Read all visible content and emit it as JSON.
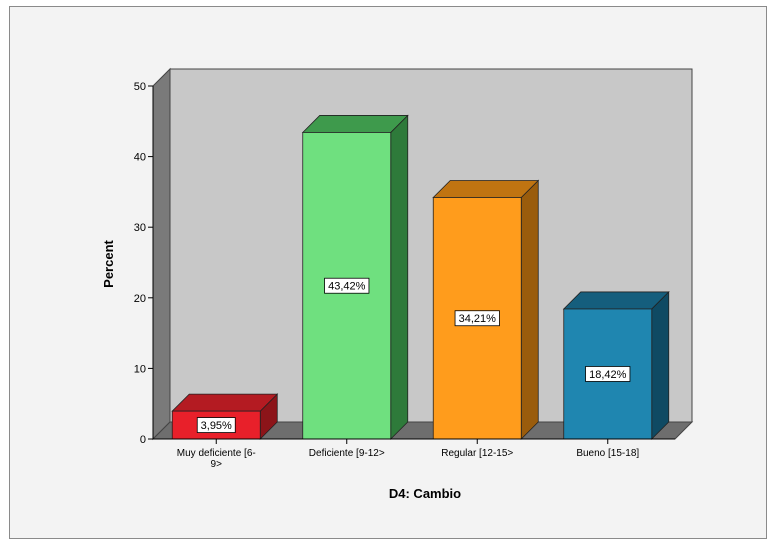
{
  "chart_data": {
    "type": "bar",
    "title": "",
    "xlabel": "D4: Cambio",
    "ylabel": "Percent",
    "ylim": [
      0,
      50
    ],
    "yticks": [
      0,
      10,
      20,
      30,
      40,
      50
    ],
    "categories": [
      "Muy deficiente [6-9>",
      "Deficiente [9-12>",
      "Regular [12-15>",
      "Bueno [15-18]"
    ],
    "category_label_lines": [
      [
        "Muy deficiente [6-",
        "9>"
      ],
      [
        "Deficiente [9-12>"
      ],
      [
        "Regular [12-15>"
      ],
      [
        "Bueno [15-18]"
      ]
    ],
    "values": [
      3.95,
      43.42,
      34.21,
      18.42
    ],
    "data_labels": [
      "3,95%",
      "43,42%",
      "34,21%",
      "18,42%"
    ],
    "bar_colors": [
      "#e8202a",
      "#6fe07f",
      "#ff9c1c",
      "#1f86b0"
    ],
    "bar_top_colors": [
      "#b41b22",
      "#3e9a4c",
      "#c07411",
      "#155e7d"
    ],
    "bar_side_colors": [
      "#8c1419",
      "#2e7a3a",
      "#9a5c0c",
      "#0f4a63"
    ],
    "colors": {
      "back_wall": "#c8c8c8",
      "left_wall": "#7a7a7a",
      "floor": "#6e6e6e",
      "background": "#f3f3f3"
    },
    "grid": false,
    "style": "3d"
  }
}
